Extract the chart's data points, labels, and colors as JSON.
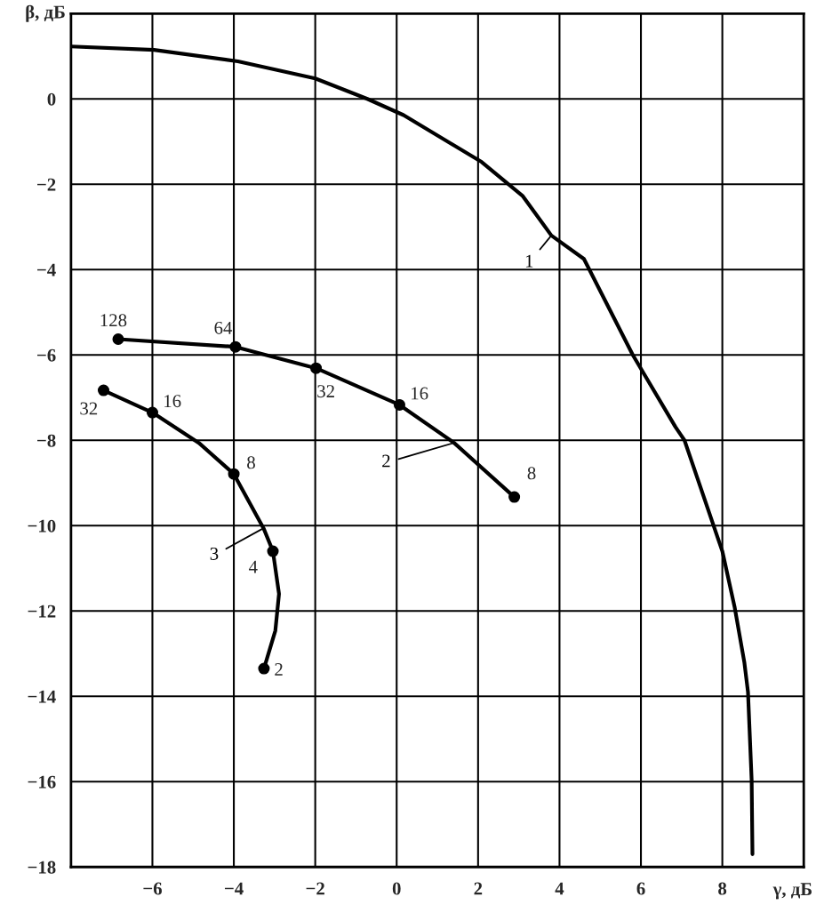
{
  "chart_data": {
    "type": "line",
    "xlabel": "γ, дБ",
    "ylabel": "β, дБ",
    "xlim": [
      -8,
      10
    ],
    "xticks": [
      -6,
      -4,
      -2,
      0,
      2,
      4,
      6,
      8
    ],
    "ylim": [
      -18,
      2
    ],
    "yticks": [
      0,
      -2,
      -4,
      -6,
      -8,
      -10,
      -12,
      -14,
      -16,
      -18
    ],
    "grid": true,
    "line_style": "solid",
    "series": [
      {
        "name": "1",
        "color": "#000000",
        "x": [
          -8.0,
          -5.96,
          -3.9,
          -2.0,
          -0.72,
          0.17,
          2.09,
          3.1,
          3.8,
          4.6,
          5.8,
          6.85,
          7.07,
          8.0,
          8.3,
          8.54,
          8.63,
          8.72,
          8.74
        ],
        "values": [
          1.23,
          1.15,
          0.88,
          0.48,
          0.0,
          -0.38,
          -1.48,
          -2.28,
          -3.2,
          -3.75,
          -6.0,
          -7.69,
          -8.0,
          -10.6,
          -11.9,
          -13.2,
          -13.9,
          -15.96,
          -17.7
        ]
      },
      {
        "name": "2",
        "color": "#000000",
        "x": [
          -6.84,
          -3.96,
          -1.98,
          0.07,
          1.41,
          2.89
        ],
        "values": [
          -5.63,
          -5.81,
          -6.31,
          -7.17,
          -8.06,
          -9.33
        ]
      },
      {
        "name": "3",
        "color": "#000000",
        "x": [
          -7.2,
          -6.0,
          -4.86,
          -4.0,
          -3.27,
          -3.04,
          -2.89,
          -2.98,
          -3.26
        ],
        "values": [
          -6.83,
          -7.35,
          -8.06,
          -8.79,
          -10.06,
          -10.6,
          -11.6,
          -12.46,
          -13.35
        ]
      },
      {
        "type": "scatter",
        "marker": "circle",
        "color": "#000000",
        "x": [
          -6.84,
          -3.96,
          -1.98,
          0.07,
          2.89
        ],
        "values": [
          -5.63,
          -5.81,
          -6.31,
          -7.17,
          -9.33
        ]
      },
      {
        "type": "scatter",
        "marker": "circle",
        "color": "#000000",
        "x": [
          -7.2,
          -6.0,
          -4.0,
          -3.04,
          -3.26
        ],
        "values": [
          -6.83,
          -7.35,
          -8.79,
          -10.6,
          -13.35
        ]
      }
    ],
    "annotations": [
      {
        "text": "128",
        "x": -6.84,
        "y": -5.63
      },
      {
        "text": "64",
        "x": -3.96,
        "y": -5.81
      },
      {
        "text": "32",
        "x": -1.98,
        "y": -6.31
      },
      {
        "text": "16",
        "x": 0.07,
        "y": -7.17
      },
      {
        "text": "8",
        "x": 2.89,
        "y": -9.33
      },
      {
        "text": "32",
        "x": -7.2,
        "y": -6.83
      },
      {
        "text": "16",
        "x": -6.0,
        "y": -7.35
      },
      {
        "text": "8",
        "x": -4.0,
        "y": -8.79
      },
      {
        "text": "4",
        "x": -3.04,
        "y": -10.6
      },
      {
        "text": "2",
        "x": -3.26,
        "y": -13.35
      }
    ]
  }
}
